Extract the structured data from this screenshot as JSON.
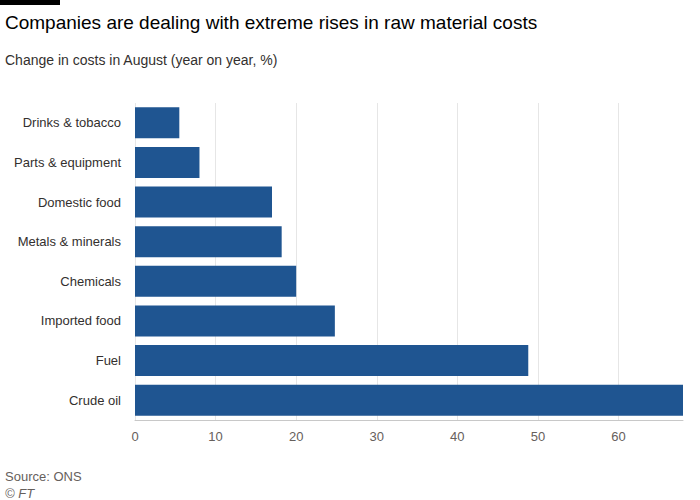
{
  "chart_data": {
    "type": "bar",
    "orientation": "horizontal",
    "title": "Companies are dealing with extreme rises in raw material costs",
    "subtitle": "Change in costs in August (year on year, %)",
    "source": "Source: ONS",
    "credit": "© FT",
    "categories": [
      "Drinks & tobacco",
      "Parts & equipment",
      "Domestic food",
      "Metals & minerals",
      "Chemicals",
      "Imported food",
      "Fuel",
      "Crude oil"
    ],
    "values": [
      5.5,
      8,
      17,
      18.2,
      20,
      24.8,
      48.8,
      68
    ],
    "color": "#1f5591",
    "xlim": [
      0,
      68
    ],
    "xticks": [
      0,
      10,
      20,
      30,
      40,
      50,
      60
    ],
    "grid": true,
    "data_labels": false
  }
}
